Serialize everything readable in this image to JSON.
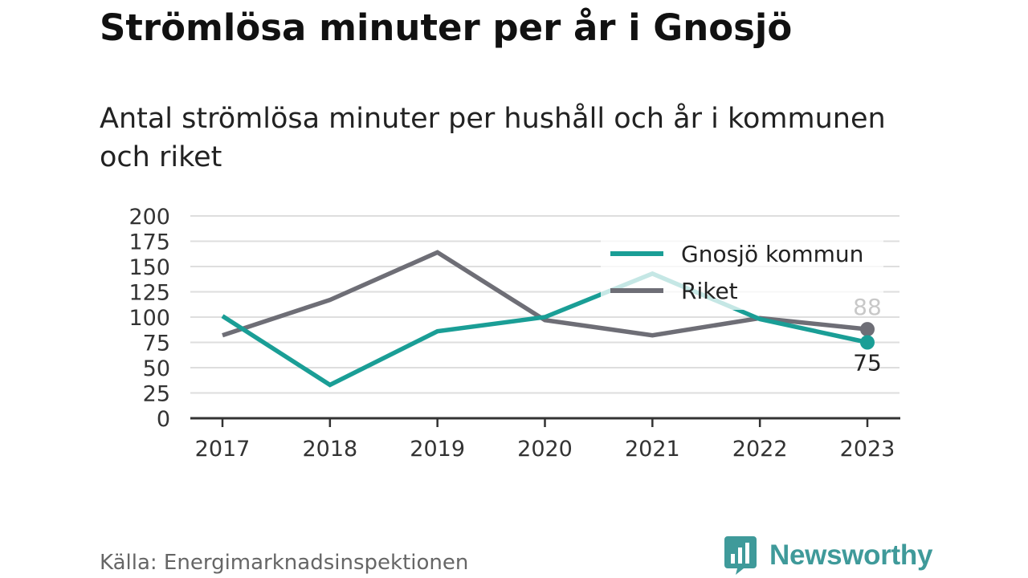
{
  "title": "Strömlösa minuter per år i Gnosjö",
  "subtitle": "Antal strömlösa minuter per hushåll och år i kommunen och riket",
  "source": "Källa: Energimarknadsinspektionen",
  "brand": "Newsworthy",
  "colors": {
    "gnosjo": "#1a9e96",
    "riket": "#6e6e76",
    "grid": "#dedede",
    "brand": "#3f9a9a"
  },
  "chart_data": {
    "type": "line",
    "categories": [
      "2017",
      "2018",
      "2019",
      "2020",
      "2021",
      "2022",
      "2023"
    ],
    "ylim": [
      0,
      200
    ],
    "yticks": [
      0,
      25,
      50,
      75,
      100,
      125,
      150,
      175,
      200
    ],
    "grid": true,
    "legend_position": "top-right",
    "series": [
      {
        "name": "Gnosjö kommun",
        "values": [
          101,
          33,
          86,
          100,
          143,
          98,
          75
        ],
        "end_label": "75"
      },
      {
        "name": "Riket",
        "values": [
          82,
          117,
          164,
          97,
          82,
          99,
          88
        ],
        "end_label": "88"
      }
    ]
  }
}
